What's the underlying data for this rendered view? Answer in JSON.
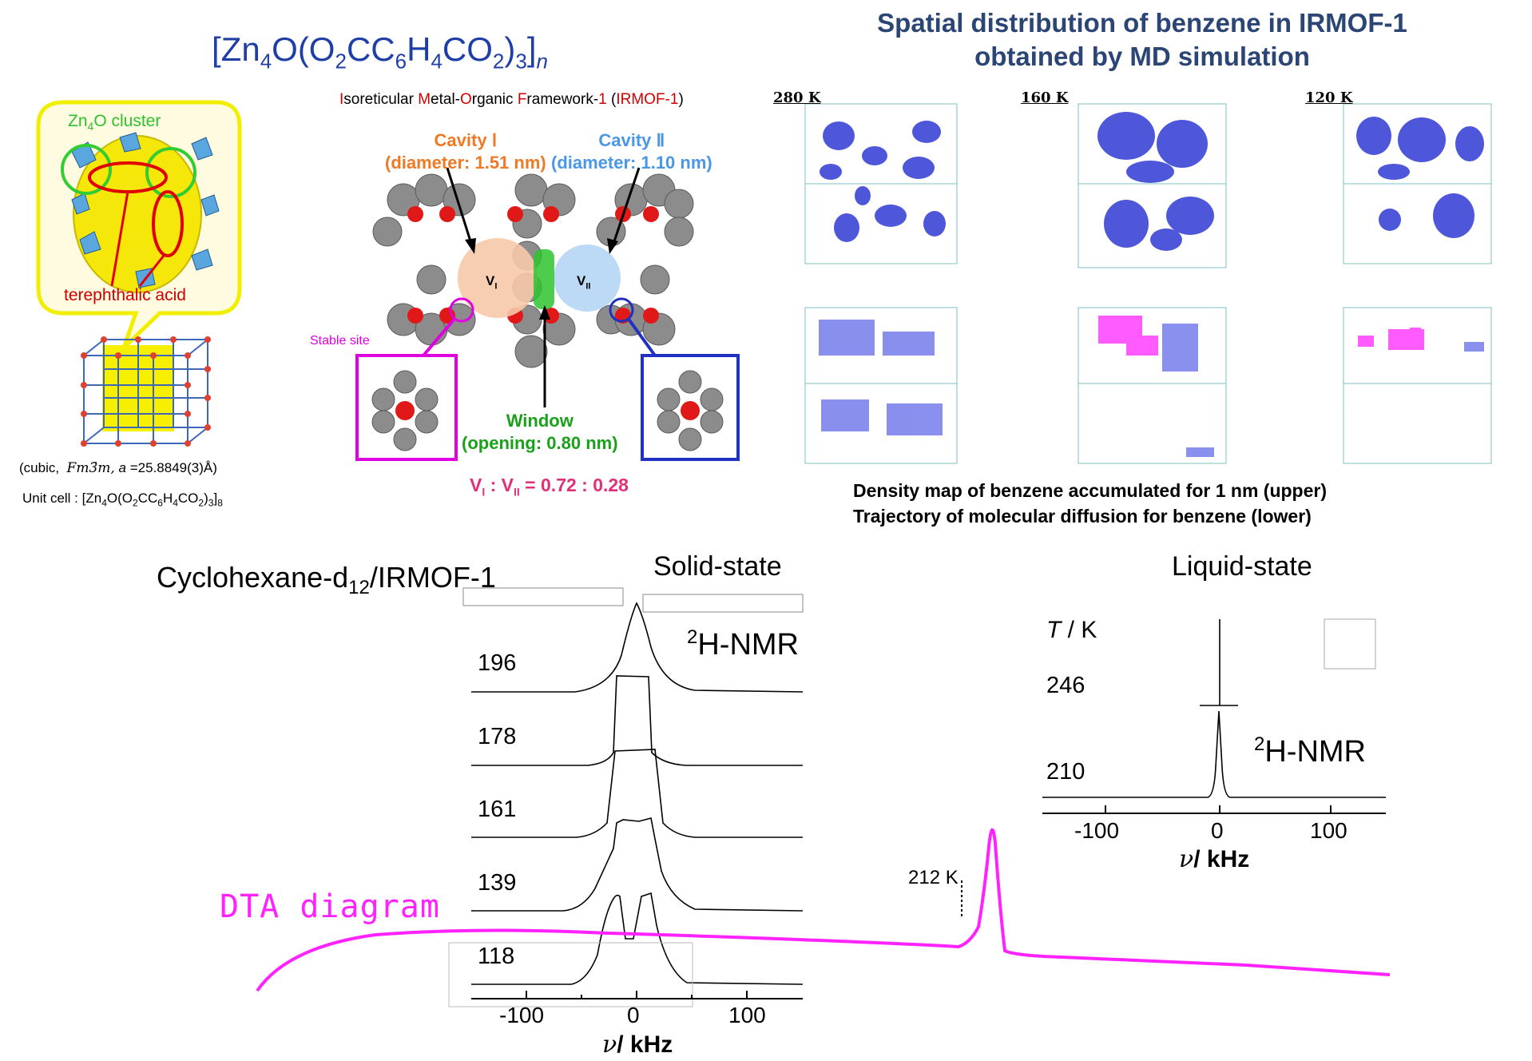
{
  "top_left": {
    "formula_title": {
      "pre": "[Zn",
      "s1": "4",
      "mid1": "O(O",
      "s2": "2",
      "mid2": "CC",
      "s3": "6",
      "mid3": "H",
      "s4": "4",
      "mid4": "CO",
      "s5": "2",
      "mid5": ")",
      "s6": "3",
      "mid6": "]",
      "s7": "n"
    },
    "zn4o_label": {
      "a": "Zn",
      "b": "4",
      "c": "O cluster"
    },
    "terephthalic_label": "terephthalic acid",
    "cubic_line": {
      "a": "(cubic,",
      "b": "Fm3̄m,",
      "c": "a",
      "d": "=25.8849(3)Å)"
    },
    "unit_cell": {
      "a": "Unit cell : [Zn",
      "b": "4",
      "c": "O(O",
      "d": "2",
      "e": "CC",
      "f": "6",
      "g": "H",
      "h": "4",
      "i": "CO",
      "j": "2",
      "k": ")",
      "l": "3",
      "m": "]",
      "n": "8"
    }
  },
  "framework": {
    "irmof_line": {
      "I": "I",
      "soreticular": "soreticular ",
      "M": "M",
      "etal": "etal-",
      "O": "O",
      "rganic": "rganic ",
      "F": "F",
      "ramework": "ramework-",
      "one": "1",
      "paren_open": " (",
      "acronym": "IRMOF-1",
      "paren_close": ")"
    },
    "cavity1": {
      "line1": "Cavity Ⅰ",
      "line2": "(diameter: 1.51 nm)"
    },
    "cavity2": {
      "line1": "Cavity Ⅱ",
      "line2": "(diameter: 1.10 nm)"
    },
    "v1": {
      "a": "V",
      "b": "I"
    },
    "v2": {
      "a": "V",
      "b": "II"
    },
    "stable_site": "Stable site",
    "window": {
      "line1": "Window",
      "line2": "(opening: 0.80 nm)"
    },
    "ratio": {
      "a": "V",
      "b": "I",
      "c": " : V",
      "d": "II",
      "e": " = 0.72 : 0.28"
    }
  },
  "md_simulation": {
    "title_line1": "Spatial distribution of benzene in IRMOF-1",
    "title_line2": "obtained by MD simulation",
    "temps": [
      "280 K",
      "160 K",
      "120 K"
    ],
    "caption_line1": "Density map of benzene accumulated for 1 nm (upper)",
    "caption_line2": "Trajectory of molecular diffusion for benzene (lower)"
  },
  "solid_nmr": {
    "title": {
      "a": "Cyclohexane-d",
      "b": "12",
      "c": "/IRMOF-1"
    },
    "state_label": "Solid-state",
    "nmr_label": {
      "sup": "2",
      "text": "H-NMR"
    },
    "temperatures": [
      "196",
      "178",
      "161",
      "139",
      "118"
    ],
    "x_ticks": [
      "-100",
      "0",
      "100"
    ],
    "x_label": {
      "nu": "ν",
      "unit": "/ kHz"
    }
  },
  "liquid_nmr": {
    "state_label": "Liquid-state",
    "t_label": {
      "T": "T",
      "unit": " / K"
    },
    "temperatures": [
      "246",
      "210"
    ],
    "nmr_label": {
      "sup": "2",
      "text": "H-NMR"
    },
    "x_ticks": [
      "-100",
      "0",
      "100"
    ],
    "x_label": {
      "nu": "ν",
      "unit": "/ kHz"
    }
  },
  "dta": {
    "label": "DTA diagram",
    "peak_label": "212 K",
    "color": "#ff22ff"
  },
  "colors": {
    "title_blue": "#1f3fa6",
    "sim_title": "#2b4575",
    "cavity1": "#ee7a25",
    "cavity2": "#4a97e6",
    "window": "#1aa11a",
    "ratio": "#e0307a",
    "stable": "#e000e0",
    "zn_cluster": "#2ec02e",
    "acid": "#d00000"
  }
}
